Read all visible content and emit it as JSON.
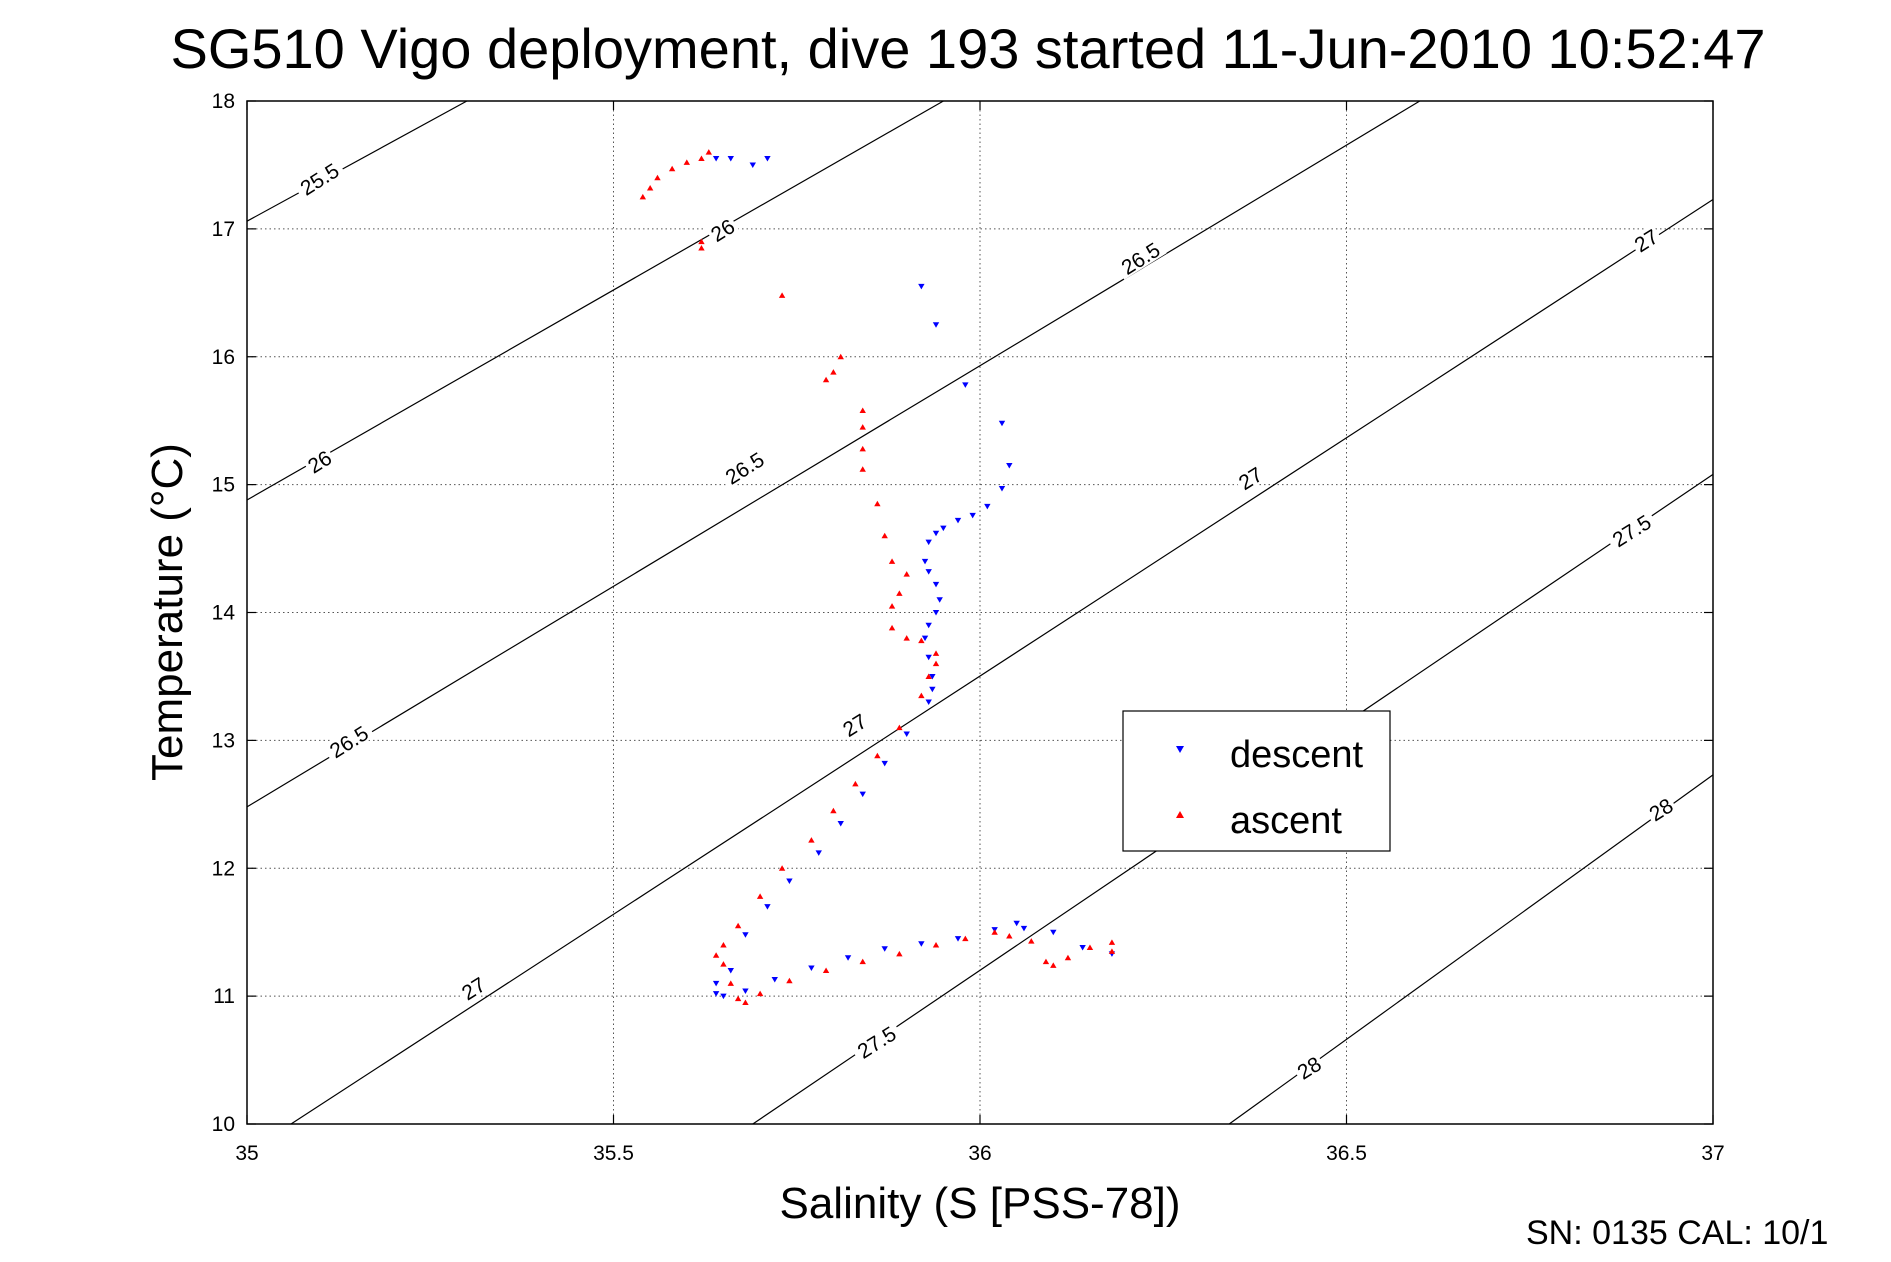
{
  "chart_data": {
    "type": "scatter",
    "title": "SG510 Vigo deployment, dive 193 started 11-Jun-2010 10:52:47",
    "xlabel": "Salinity (S [PSS-78])",
    "ylabel": "Temperature (°C)",
    "xlim": [
      35,
      37
    ],
    "ylim": [
      10,
      18
    ],
    "xticks": [
      "35",
      "35.5",
      "36",
      "36.5",
      "37"
    ],
    "yticks": [
      "10",
      "11",
      "12",
      "13",
      "14",
      "15",
      "16",
      "17",
      "18"
    ],
    "grid": true,
    "legend_position": "center-right",
    "footer": "SN: 0135  CAL: 10/1",
    "density_contours": [
      {
        "level": "25.5",
        "points": [
          [
            35,
            17.06
          ],
          [
            35.3,
            18
          ]
        ]
      },
      {
        "level": "26",
        "points": [
          [
            35,
            14.88
          ],
          [
            35.95,
            18
          ]
        ]
      },
      {
        "level": "26.5",
        "points": [
          [
            35,
            12.48
          ],
          [
            36.6,
            18
          ]
        ]
      },
      {
        "level": "27",
        "points": [
          [
            35.06,
            10
          ],
          [
            37,
            17.23
          ]
        ]
      },
      {
        "level": "27.5",
        "points": [
          [
            35.69,
            10
          ],
          [
            37,
            15.08
          ]
        ]
      },
      {
        "level": "28",
        "points": [
          [
            36.34,
            10
          ],
          [
            37,
            12.73
          ]
        ]
      }
    ],
    "contour_labels": [
      {
        "text": "25.5",
        "x": 35.1,
        "y": 17.38
      },
      {
        "text": "26",
        "x": 35.65,
        "y": 16.98
      },
      {
        "text": "26.5",
        "x": 36.22,
        "y": 16.76
      },
      {
        "text": "27",
        "x": 36.91,
        "y": 16.9
      },
      {
        "text": "26",
        "x": 35.1,
        "y": 15.17
      },
      {
        "text": "26.5",
        "x": 35.68,
        "y": 15.12
      },
      {
        "text": "27",
        "x": 36.37,
        "y": 15.04
      },
      {
        "text": "27.5",
        "x": 36.89,
        "y": 14.63
      },
      {
        "text": "26.5",
        "x": 35.14,
        "y": 12.98
      },
      {
        "text": "27",
        "x": 35.83,
        "y": 13.11
      },
      {
        "text": "28",
        "x": 36.93,
        "y": 12.45
      },
      {
        "text": "27",
        "x": 35.31,
        "y": 11.05
      },
      {
        "text": "27.5",
        "x": 35.86,
        "y": 10.63
      },
      {
        "text": "28",
        "x": 36.45,
        "y": 10.43
      }
    ],
    "series": [
      {
        "name": "descent",
        "color": "#0000ff",
        "marker": "triangle-down",
        "x": [
          35.71,
          35.69,
          35.66,
          35.64,
          35.92,
          35.94,
          35.98,
          36.03,
          36.04,
          36.03,
          36.01,
          35.99,
          35.97,
          35.95,
          35.94,
          35.93,
          35.925,
          35.93,
          35.94,
          35.945,
          35.94,
          35.93,
          35.925,
          35.93,
          35.935,
          35.935,
          35.93,
          35.9,
          35.87,
          35.84,
          35.81,
          35.78,
          35.74,
          35.71,
          35.68,
          35.66,
          35.64,
          35.64,
          35.65,
          35.68,
          35.72,
          35.77,
          35.82,
          35.87,
          35.92,
          35.97,
          36.02,
          36.05,
          36.06,
          36.1,
          36.14,
          36.18
        ],
        "y": [
          17.55,
          17.5,
          17.55,
          17.55,
          16.55,
          16.25,
          15.78,
          15.48,
          15.15,
          14.97,
          14.83,
          14.76,
          14.72,
          14.66,
          14.62,
          14.55,
          14.4,
          14.32,
          14.22,
          14.1,
          14.0,
          13.9,
          13.8,
          13.65,
          13.5,
          13.4,
          13.3,
          13.05,
          12.82,
          12.58,
          12.35,
          12.12,
          11.9,
          11.7,
          11.48,
          11.2,
          11.1,
          11.02,
          11.0,
          11.04,
          11.13,
          11.22,
          11.3,
          11.37,
          11.41,
          11.45,
          11.52,
          11.57,
          11.53,
          11.5,
          11.38,
          11.33
        ]
      },
      {
        "name": "ascent",
        "color": "#ff0000",
        "marker": "triangle-up",
        "x": [
          35.54,
          35.55,
          35.56,
          35.58,
          35.6,
          35.62,
          35.63,
          35.62,
          35.62,
          35.73,
          35.81,
          35.8,
          35.79,
          35.84,
          35.84,
          35.84,
          35.84,
          35.86,
          35.87,
          35.88,
          35.9,
          35.89,
          35.88,
          35.88,
          35.9,
          35.92,
          35.94,
          35.94,
          35.93,
          35.92,
          35.89,
          35.86,
          35.83,
          35.8,
          35.77,
          35.73,
          35.7,
          35.67,
          35.65,
          35.64,
          35.65,
          35.66,
          35.67,
          35.68,
          35.7,
          35.74,
          35.79,
          35.84,
          35.89,
          35.94,
          35.98,
          36.02,
          36.04,
          36.07,
          36.09,
          36.1,
          36.12,
          36.15,
          36.18,
          36.18
        ],
        "y": [
          17.25,
          17.32,
          17.4,
          17.47,
          17.52,
          17.55,
          17.6,
          16.9,
          16.85,
          16.48,
          16.0,
          15.88,
          15.82,
          15.58,
          15.45,
          15.28,
          15.12,
          14.85,
          14.6,
          14.4,
          14.3,
          14.15,
          14.05,
          13.88,
          13.8,
          13.78,
          13.68,
          13.6,
          13.5,
          13.35,
          13.1,
          12.88,
          12.66,
          12.45,
          12.22,
          12.0,
          11.78,
          11.55,
          11.4,
          11.32,
          11.25,
          11.1,
          10.98,
          10.95,
          11.02,
          11.12,
          11.2,
          11.27,
          11.33,
          11.4,
          11.45,
          11.5,
          11.47,
          11.43,
          11.27,
          11.24,
          11.3,
          11.38,
          11.42,
          11.35
        ]
      }
    ]
  }
}
